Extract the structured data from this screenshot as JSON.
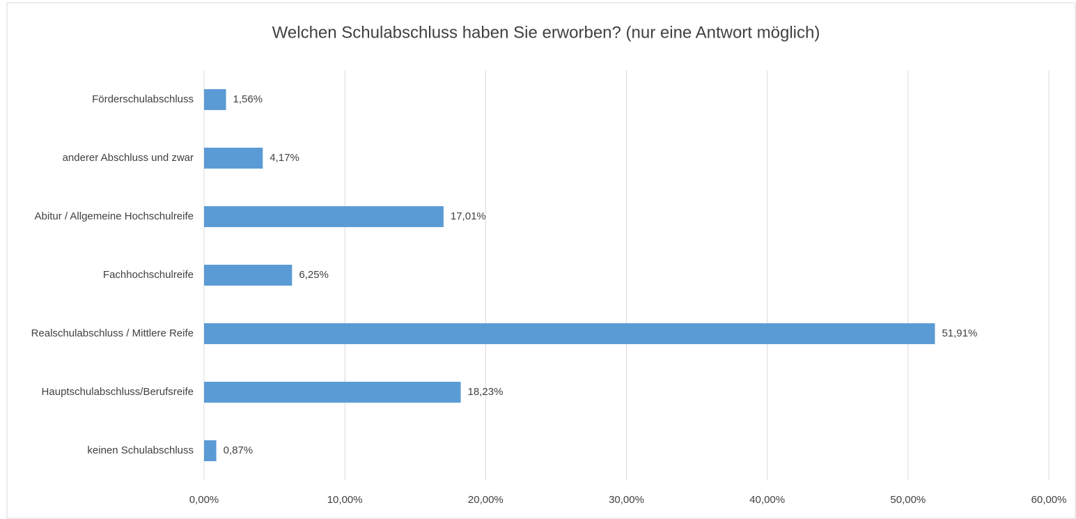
{
  "chart_data": {
    "type": "barh",
    "title": "Welchen Schulabschluss haben Sie erworben? (nur eine Antwort möglich)",
    "categories": [
      "Förderschulabschluss",
      "anderer Abschluss und zwar",
      "Abitur / Allgemeine Hochschulreife",
      "Fachhochschulreife",
      "Realschulabschluss / Mittlere Reife",
      "Hauptschulabschluss/Berufsreife",
      "keinen Schulabschluss"
    ],
    "values": [
      1.56,
      4.17,
      17.01,
      6.25,
      51.91,
      18.23,
      0.87
    ],
    "value_labels": [
      "1,56%",
      "4,17%",
      "17,01%",
      "6,25%",
      "51,91%",
      "18,23%",
      "0,87%"
    ],
    "color": "#5b9bd5",
    "xlim": [
      0,
      60
    ],
    "xticks": [
      {
        "value": 0,
        "label": "0,00%"
      },
      {
        "value": 10,
        "label": "10,00%"
      },
      {
        "value": 20,
        "label": "20,00%"
      },
      {
        "value": 30,
        "label": "30,00%"
      },
      {
        "value": 40,
        "label": "40,00%"
      },
      {
        "value": 50,
        "label": "50,00%"
      },
      {
        "value": 60,
        "label": "60,00%"
      }
    ],
    "grid": true
  }
}
